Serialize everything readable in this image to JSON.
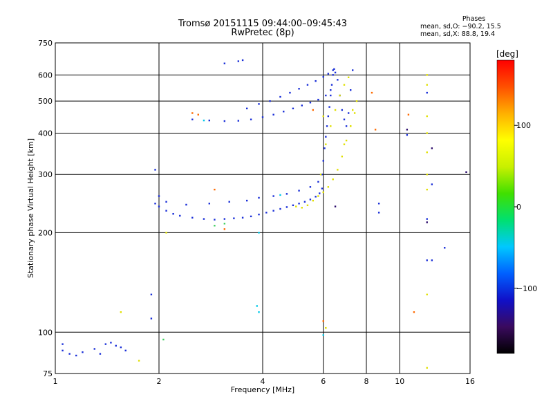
{
  "header": {
    "title_line1": "Tromsø 20151115 09:44:00–09:45:43",
    "title_line2": "RwPretec (8p)"
  },
  "phases": {
    "heading": "Phases",
    "o_line": "mean, sd,O: −90.2, 15.5",
    "x_line": "mean, sd,X:  88.8, 19.4"
  },
  "chart_data": {
    "type": "scatter",
    "xlabel": "Frequency [MHz]",
    "ylabel": "Stationary phase Virtual Height [km]",
    "x_scale": "log",
    "y_scale": "log",
    "xlim": [
      1,
      16
    ],
    "ylim": [
      75,
      750
    ],
    "x_ticks": [
      1,
      2,
      4,
      6,
      8,
      10,
      16
    ],
    "y_ticks": [
      75,
      100,
      200,
      300,
      400,
      500,
      600,
      750
    ],
    "grid": true,
    "colorbar": {
      "label": "[deg]",
      "ticks": [
        100,
        0,
        -100
      ],
      "range": [
        -180,
        180
      ],
      "colors": [
        "#000000",
        "#3a0a5e",
        "#1010c8",
        "#0060ff",
        "#00c8ff",
        "#00e070",
        "#40e000",
        "#c8f000",
        "#ffff00",
        "#ffb000",
        "#ff5000",
        "#ff0000"
      ]
    },
    "series": [
      {
        "color": "#1a2fd8",
        "points": [
          [
            1.05,
            88
          ],
          [
            1.1,
            86
          ],
          [
            1.15,
            85
          ],
          [
            1.2,
            87
          ],
          [
            1.3,
            89
          ],
          [
            1.35,
            86
          ],
          [
            1.4,
            92
          ],
          [
            1.45,
            93
          ],
          [
            1.5,
            91
          ],
          [
            1.55,
            90
          ],
          [
            1.6,
            88
          ],
          [
            1.05,
            92
          ],
          [
            1.95,
            245
          ],
          [
            2.0,
            240
          ],
          [
            2.1,
            233
          ],
          [
            2.2,
            228
          ],
          [
            2.3,
            225
          ],
          [
            2.5,
            222
          ],
          [
            2.7,
            220
          ],
          [
            2.9,
            219
          ],
          [
            3.1,
            220
          ],
          [
            3.3,
            221
          ],
          [
            3.5,
            222
          ],
          [
            3.7,
            224
          ],
          [
            3.9,
            227
          ],
          [
            4.1,
            230
          ],
          [
            4.3,
            233
          ],
          [
            4.5,
            236
          ],
          [
            4.7,
            239
          ],
          [
            4.9,
            242
          ],
          [
            5.1,
            245
          ],
          [
            5.3,
            248
          ],
          [
            5.5,
            252
          ],
          [
            5.7,
            257
          ],
          [
            5.85,
            263
          ],
          [
            5.95,
            272
          ],
          [
            2.0,
            258
          ],
          [
            2.1,
            248
          ],
          [
            2.4,
            243
          ],
          [
            2.8,
            245
          ],
          [
            3.2,
            248
          ],
          [
            3.6,
            250
          ],
          [
            3.9,
            255
          ],
          [
            4.3,
            258
          ],
          [
            4.7,
            262
          ],
          [
            5.1,
            268
          ],
          [
            5.5,
            275
          ],
          [
            5.8,
            285
          ],
          [
            5.95,
            300
          ],
          [
            6.0,
            330
          ],
          [
            6.05,
            360
          ],
          [
            6.1,
            390
          ],
          [
            6.15,
            420
          ],
          [
            6.2,
            450
          ],
          [
            6.25,
            480
          ],
          [
            6.3,
            520
          ],
          [
            6.35,
            560
          ],
          [
            6.4,
            600
          ],
          [
            6.45,
            625
          ],
          [
            6.5,
            610
          ],
          [
            6.6,
            580
          ],
          [
            6.7,
            520
          ],
          [
            6.8,
            470
          ],
          [
            6.9,
            440
          ],
          [
            7.0,
            420
          ],
          [
            7.1,
            460
          ],
          [
            7.2,
            540
          ],
          [
            7.3,
            620
          ],
          [
            2.5,
            440
          ],
          [
            2.8,
            437
          ],
          [
            3.1,
            435
          ],
          [
            3.4,
            436
          ],
          [
            3.7,
            440
          ],
          [
            4.0,
            447
          ],
          [
            4.3,
            455
          ],
          [
            4.6,
            465
          ],
          [
            4.9,
            475
          ],
          [
            5.2,
            485
          ],
          [
            5.5,
            495
          ],
          [
            5.8,
            505
          ],
          [
            6.1,
            520
          ],
          [
            6.3,
            540
          ],
          [
            3.6,
            475
          ],
          [
            3.9,
            490
          ],
          [
            4.2,
            500
          ],
          [
            4.5,
            515
          ],
          [
            4.8,
            530
          ],
          [
            5.1,
            545
          ],
          [
            5.4,
            560
          ],
          [
            5.7,
            575
          ],
          [
            6.0,
            592
          ],
          [
            6.2,
            605
          ],
          [
            6.4,
            620
          ],
          [
            3.1,
            650
          ],
          [
            3.4,
            660
          ],
          [
            3.5,
            665
          ],
          [
            1.95,
            310
          ],
          [
            1.9,
            130
          ],
          [
            1.9,
            110
          ],
          [
            8.7,
            230
          ],
          [
            8.7,
            245
          ],
          [
            10.5,
            395
          ],
          [
            12.0,
            530
          ],
          [
            12.0,
            220
          ],
          [
            12.0,
            165
          ],
          [
            12.4,
            165
          ],
          [
            13.5,
            180
          ],
          [
            12.4,
            280
          ]
        ]
      },
      {
        "color": "#e0e000",
        "points": [
          [
            5.0,
            240
          ],
          [
            5.2,
            238
          ],
          [
            5.4,
            242
          ],
          [
            5.6,
            250
          ],
          [
            5.8,
            258
          ],
          [
            6.0,
            265
          ],
          [
            6.2,
            275
          ],
          [
            6.4,
            290
          ],
          [
            6.6,
            310
          ],
          [
            6.8,
            340
          ],
          [
            7.0,
            380
          ],
          [
            7.2,
            420
          ],
          [
            7.4,
            460
          ],
          [
            7.5,
            500
          ],
          [
            6.1,
            370
          ],
          [
            6.3,
            420
          ],
          [
            6.5,
            470
          ],
          [
            6.7,
            520
          ],
          [
            6.9,
            560
          ],
          [
            7.1,
            590
          ],
          [
            5.9,
            300
          ],
          [
            6.0,
            450
          ],
          [
            7.3,
            470
          ],
          [
            7.2,
            420
          ],
          [
            6.9,
            370
          ],
          [
            12.0,
            600
          ],
          [
            12.0,
            560
          ],
          [
            12.0,
            450
          ],
          [
            12.0,
            400
          ],
          [
            12.0,
            350
          ],
          [
            12.0,
            300
          ],
          [
            12.0,
            270
          ],
          [
            12.0,
            130
          ],
          [
            12.0,
            78
          ],
          [
            1.55,
            115
          ],
          [
            1.75,
            82
          ],
          [
            2.1,
            200
          ],
          [
            6.1,
            103
          ]
        ]
      },
      {
        "color": "#ff6a00",
        "points": [
          [
            2.5,
            460
          ],
          [
            2.6,
            455
          ],
          [
            2.9,
            270
          ],
          [
            5.6,
            470
          ],
          [
            8.3,
            530
          ],
          [
            8.5,
            410
          ],
          [
            10.6,
            455
          ],
          [
            11.0,
            115
          ],
          [
            3.1,
            205
          ],
          [
            6.0,
            108
          ]
        ]
      },
      {
        "color": "#00c8e8",
        "points": [
          [
            2.7,
            437
          ],
          [
            3.85,
            120
          ],
          [
            3.9,
            115
          ],
          [
            3.9,
            200
          ],
          [
            4.5,
            260
          ],
          [
            6.0,
            98
          ]
        ]
      },
      {
        "color": "#40d060",
        "points": [
          [
            2.06,
            95
          ],
          [
            2.9,
            210
          ],
          [
            3.1,
            213
          ]
        ]
      },
      {
        "color": "#2a0a6a",
        "points": [
          [
            12.4,
            360
          ],
          [
            10.5,
            410
          ],
          [
            12.0,
            215
          ],
          [
            6.5,
            240
          ],
          [
            15.6,
            305
          ]
        ]
      }
    ]
  }
}
